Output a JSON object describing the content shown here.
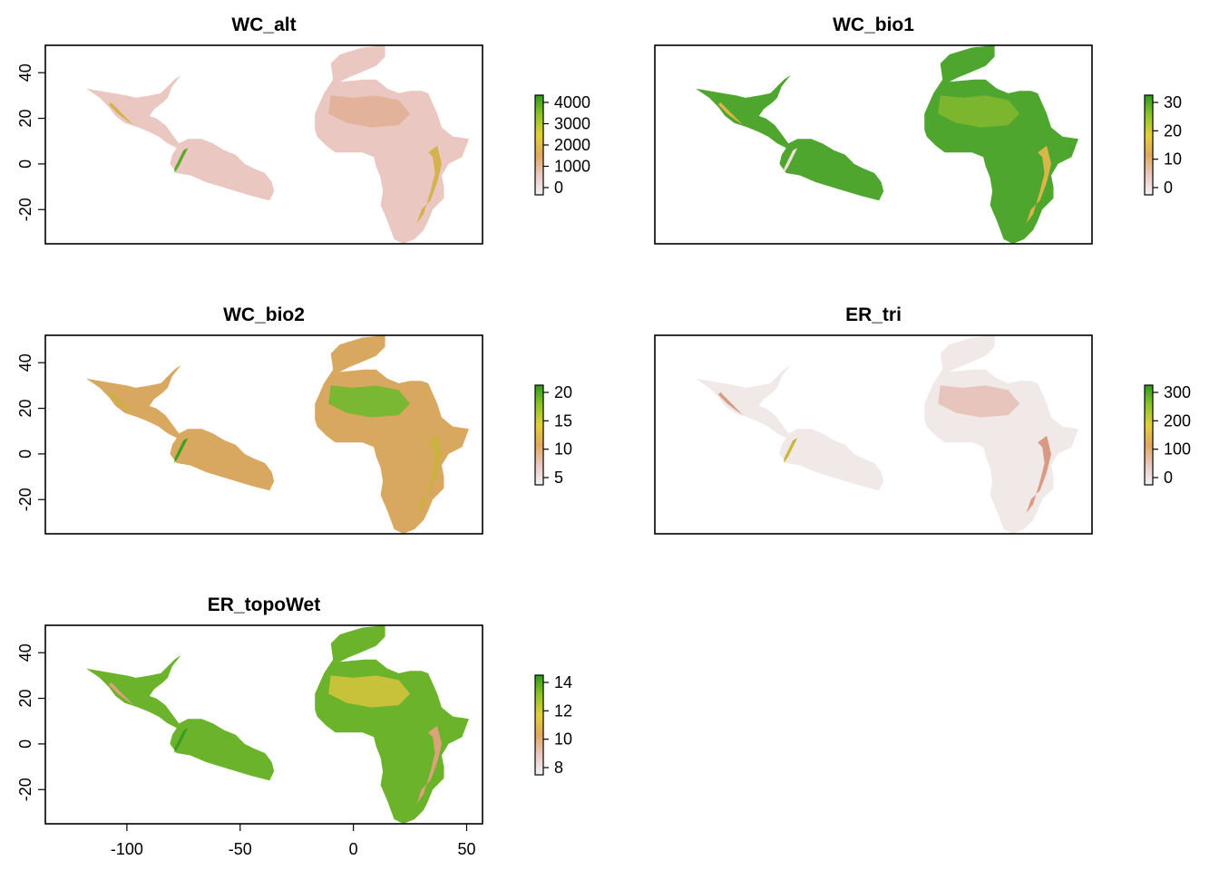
{
  "figure": {
    "x_axis_ticks": [
      "-100",
      "-50",
      "0",
      "50"
    ],
    "y_axis_ticks": [
      "40",
      "20",
      "0",
      "-20"
    ]
  },
  "panels": [
    {
      "title": "WC_alt",
      "legend_ticks": [
        "4000",
        "3000",
        "2000",
        "1000",
        "0"
      ],
      "colors": {
        "land": "#eac7c0",
        "land2": "#e2b29a",
        "highland": "#d4b24e",
        "peak": "#5aa82a"
      }
    },
    {
      "title": "WC_bio1",
      "legend_ticks": [
        "30",
        "20",
        "10",
        "0"
      ],
      "colors": {
        "land": "#4ea62e",
        "land2": "#7cb52e",
        "highland": "#d9b64a",
        "peak": "#f1dfd6"
      }
    },
    {
      "title": "WC_bio2",
      "legend_ticks": [
        "20",
        "15",
        "10",
        "5"
      ],
      "colors": {
        "land": "#d9a860",
        "land2": "#7ab834",
        "highland": "#c9b23e",
        "peak": "#3f9f24"
      }
    },
    {
      "title": "ER_tri",
      "legend_ticks": [
        "300",
        "200",
        "100",
        "0"
      ],
      "colors": {
        "land": "#f1e9e8",
        "land2": "#e7c4bc",
        "highland": "#d89a84",
        "peak": "#c8b83e"
      }
    },
    {
      "title": "ER_topoWet",
      "legend_ticks": [
        "14",
        "12",
        "10",
        "8"
      ],
      "colors": {
        "land": "#6cb32c",
        "land2": "#c7c23a",
        "highland": "#dba37a",
        "peak": "#3b9b22"
      }
    }
  ],
  "legend_gradient": [
    "#2e9a1e",
    "#8dc42a",
    "#e3cf3a",
    "#e2a85e",
    "#eac8c2",
    "#f2f2f2"
  ]
}
